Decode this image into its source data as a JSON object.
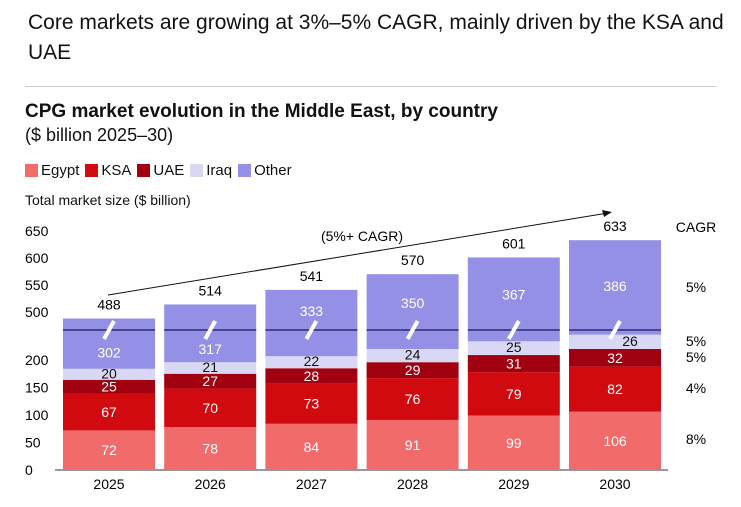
{
  "headline": "Core markets are growing at 3%–5% CAGR, mainly driven by the KSA and UAE",
  "chart_data": {
    "type": "bar",
    "stacked": true,
    "title": "CPG market evolution in the Middle East, by country",
    "subtitle": "($ billion 2025–30)",
    "ylabel": "Total market size ($ billion)",
    "categories": [
      "2025",
      "2026",
      "2027",
      "2028",
      "2029",
      "2030"
    ],
    "yticks": [
      0,
      50,
      100,
      150,
      200,
      500,
      550,
      600,
      650
    ],
    "axis_break": [
      200,
      500
    ],
    "series": [
      {
        "name": "Egypt",
        "color": "#f26b6b",
        "values": [
          72,
          78,
          84,
          91,
          99,
          106
        ],
        "cagr": "8%"
      },
      {
        "name": "KSA",
        "color": "#d10a10",
        "values": [
          67,
          70,
          73,
          76,
          79,
          82
        ],
        "cagr": "4%"
      },
      {
        "name": "UAE",
        "color": "#a00010",
        "values": [
          25,
          27,
          28,
          29,
          31,
          32
        ],
        "cagr": "5%"
      },
      {
        "name": "Iraq",
        "color": "#d8d8f5",
        "values": [
          20,
          21,
          22,
          24,
          25,
          26
        ],
        "cagr": "5%"
      },
      {
        "name": "Other",
        "color": "#9490e6",
        "values": [
          302,
          317,
          333,
          350,
          367,
          386
        ],
        "cagr": "5%"
      }
    ],
    "totals": [
      488,
      514,
      541,
      570,
      601,
      633
    ],
    "cagr_header": "CAGR",
    "trend_annotation": "(5%+ CAGR)",
    "legend_position": "top-left"
  }
}
